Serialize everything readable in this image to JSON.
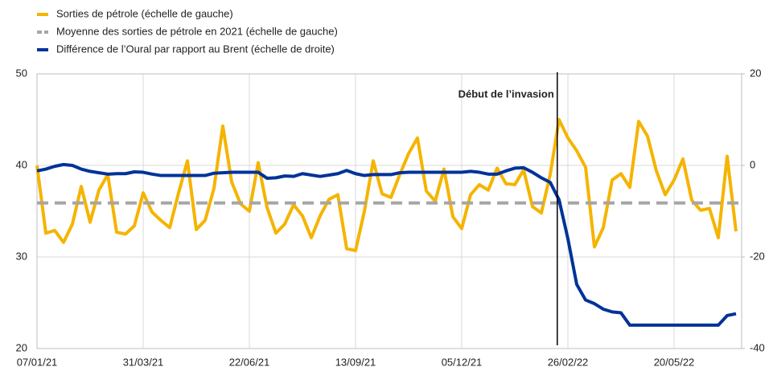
{
  "chart_data": {
    "type": "line",
    "categories": [
      "07/01/21",
      null,
      null,
      null,
      null,
      null,
      null,
      null,
      null,
      null,
      null,
      null,
      "31/03/21",
      null,
      null,
      null,
      null,
      null,
      null,
      null,
      null,
      null,
      null,
      null,
      "22/06/21",
      null,
      null,
      null,
      null,
      null,
      null,
      null,
      null,
      null,
      null,
      null,
      "13/09/21",
      null,
      null,
      null,
      null,
      null,
      null,
      null,
      null,
      null,
      null,
      null,
      "05/12/21",
      null,
      null,
      null,
      null,
      null,
      null,
      null,
      null,
      null,
      null,
      null,
      "26/02/22",
      null,
      null,
      null,
      null,
      null,
      null,
      null,
      null,
      null,
      null,
      null,
      "20/05/22",
      null,
      null,
      null,
      null,
      null,
      null,
      null
    ],
    "series": [
      {
        "name": "Sorties de pétrole (échelle de gauche)",
        "color": "#f5b400",
        "axis": "y",
        "values": [
          40,
          32.6,
          32.9,
          31.6,
          33.6,
          37.7,
          33.8,
          37.3,
          39,
          32.7,
          32.5,
          33.4,
          37,
          34.9,
          34,
          33.2,
          37,
          40.5,
          33,
          34,
          37.5,
          44.3,
          38.2,
          35.8,
          35,
          40.3,
          35.4,
          32.6,
          33.6,
          35.7,
          34.5,
          32.1,
          34.5,
          36.3,
          36.8,
          30.9,
          30.7,
          35,
          40.5,
          36.9,
          36.5,
          39,
          41.3,
          43,
          37.2,
          36.1,
          39.6,
          34.4,
          33.1,
          36.8,
          37.9,
          37.3,
          39.7,
          38,
          37.9,
          39.5,
          35.5,
          34.8,
          39,
          45,
          43,
          41.6,
          39.8,
          31.1,
          33.2,
          38.4,
          39.1,
          37.6,
          44.8,
          43.2,
          39.4,
          36.8,
          38.4,
          40.7,
          36.2,
          35.1,
          35.3,
          32.1,
          41,
          32.8
        ]
      },
      {
        "name": "Moyenne des sorties de pétrole en 2021 (échelle de gauche)",
        "color": "#a6a6a6",
        "axis": "y",
        "dashed": true,
        "value": 35.9
      },
      {
        "name": "Différence de l’Oural par rapport au Brent (échelle de droite)",
        "color": "#003299",
        "axis": "y2",
        "values": [
          -1.2,
          -0.8,
          -0.2,
          0.2,
          0,
          -0.8,
          -1.3,
          -1.6,
          -1.9,
          -1.8,
          -1.8,
          -1.4,
          -1.5,
          -1.9,
          -2.2,
          -2.2,
          -2.2,
          -2.2,
          -2.2,
          -2.2,
          -1.7,
          -1.6,
          -1.5,
          -1.5,
          -1.5,
          -1.5,
          -2.8,
          -2.7,
          -2.3,
          -2.4,
          -1.8,
          -2.1,
          -2.4,
          -2.1,
          -1.8,
          -1.1,
          -1.8,
          -2.2,
          -2,
          -2,
          -2,
          -1.6,
          -1.5,
          -1.5,
          -1.5,
          -1.5,
          -1.5,
          -1.5,
          -1.5,
          -1.3,
          -1.5,
          -1.9,
          -1.9,
          -1.2,
          -0.6,
          -0.5,
          -1.5,
          -2.7,
          -3.7,
          -7.5,
          -16,
          -26,
          -29.4,
          -30.2,
          -31.4,
          -32,
          -32.2,
          -34.9,
          -34.9,
          -34.9,
          -34.9,
          -34.9,
          -34.9,
          -34.9,
          -34.9,
          -34.9,
          -34.9,
          -34.9,
          -32.8,
          -32.4
        ]
      }
    ],
    "ylim": [
      20,
      50
    ],
    "yticks": [
      20,
      30,
      40,
      50
    ],
    "y2lim": [
      -40,
      20
    ],
    "y2ticks": [
      -40,
      -20,
      0,
      20
    ],
    "annotations": [
      {
        "text": "Début de l’invasion",
        "x": 58.8
      }
    ],
    "grid": true,
    "legend": "top-left"
  }
}
